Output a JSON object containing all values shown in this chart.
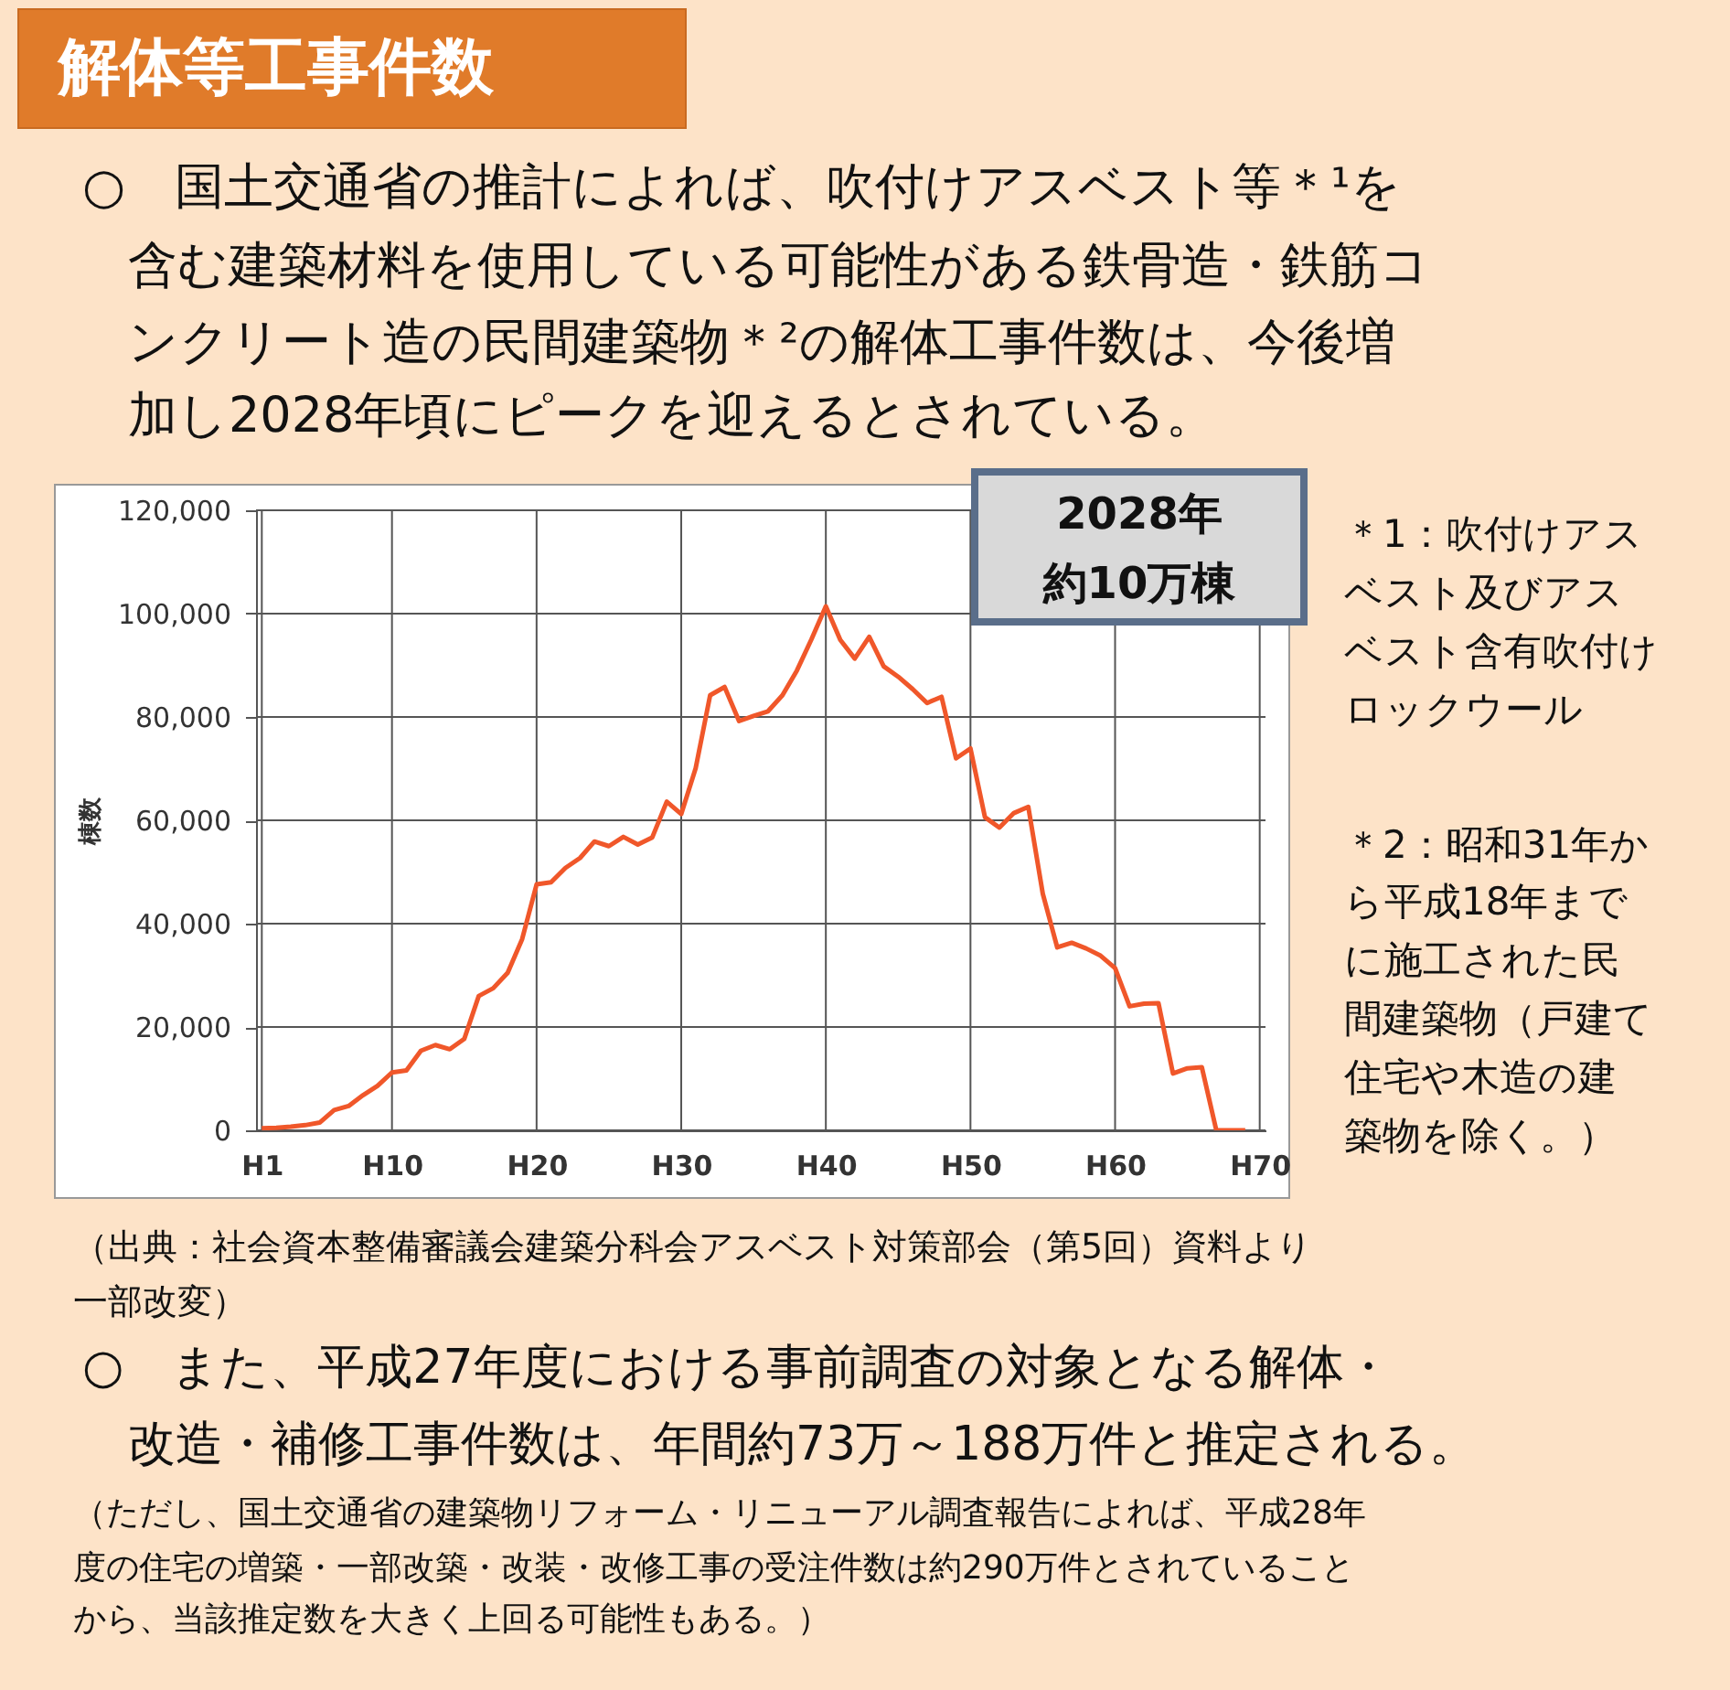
{
  "chart_data": {
    "type": "line",
    "title": "解体等工事件数",
    "ylabel": "棟数",
    "categories": [
      "H1",
      null,
      null,
      null,
      null,
      null,
      null,
      null,
      null,
      "H10",
      null,
      null,
      null,
      null,
      null,
      null,
      null,
      null,
      null,
      "H20",
      null,
      null,
      null,
      null,
      null,
      null,
      null,
      null,
      null,
      "H30",
      null,
      null,
      null,
      null,
      null,
      null,
      null,
      null,
      null,
      "H40",
      null,
      null,
      null,
      null,
      null,
      null,
      null,
      null,
      null,
      "H50",
      null,
      null,
      null,
      null,
      null,
      null,
      null,
      null,
      null,
      "H60",
      null,
      null,
      null,
      null,
      null,
      null,
      null,
      null,
      null,
      "H70"
    ],
    "series": [
      {
        "color": "#f0572a",
        "values": [
          400,
          500,
          700,
          1000,
          1500,
          3900,
          4700,
          6800,
          8600,
          11200,
          11600,
          15400,
          16500,
          15700,
          17700,
          26000,
          27500,
          30500,
          37000,
          47600,
          48000,
          50800,
          52700,
          55900,
          55000,
          56800,
          55300,
          56700,
          63600,
          61200,
          70100,
          84200,
          85800,
          79200,
          80200,
          81100,
          84200,
          89000,
          95000,
          101400,
          94900,
          91300,
          95500,
          89800,
          87800,
          85400,
          82700,
          83900,
          72000,
          73900,
          60600,
          58600,
          61400,
          62600,
          45800,
          35400,
          36300,
          35200,
          33800,
          31400,
          24000,
          24500,
          24600,
          11000,
          12000,
          12200,
          0,
          0,
          0,
          null
        ]
      }
    ],
    "ylim": [
      0,
      120000
    ],
    "yticks": [
      {
        "value": 0,
        "label": "0"
      },
      {
        "value": 20000,
        "label": "20,000"
      },
      {
        "value": 40000,
        "label": "40,000"
      },
      {
        "value": 60000,
        "label": "60,000"
      },
      {
        "value": 80000,
        "label": "80,000"
      },
      {
        "value": 100000,
        "label": "100,000"
      },
      {
        "value": 120000,
        "label": "120,000"
      }
    ],
    "grid": true,
    "legend": false,
    "marker": "none",
    "line_style": "solid",
    "annotations": [
      "○　国土交通省の推計によれば、吹付けアスベスト等＊¹を",
      "含む建築材料を使用している可能性がある鉄骨造・鉄筋コ",
      "ンクリート造の民間建築物＊²の解体工事件数は、今後増",
      "加し2028年頃にピークを迎えるとされている。",
      "2028年",
      "約10万棟",
      "＊1：吹付けアス",
      "ベスト及びアス",
      "ベスト含有吹付け",
      "ロックウール",
      "＊2：昭和31年か",
      "ら平成18年まで",
      "に施工された民",
      "間建築物（戸建て",
      "住宅や木造の建",
      "築物を除く。）",
      "（出典：社会資本整備審議会建築分科会アスベスト対策部会（第5回）資料より",
      "一部改変）",
      "○　また、平成27年度における事前調査の対象となる解体・",
      "改造・補修工事件数は、年間約73万～188万件と推定される。",
      "（ただし、国土交通省の建築物リフォーム・リニューアル調査報告によれば、平成28年",
      "度の住宅の増築・一部改築・改装・改修工事の受注件数は約290万件とされていること",
      "から、当該推定数を大きく上回る可能性もある。）"
    ]
  }
}
